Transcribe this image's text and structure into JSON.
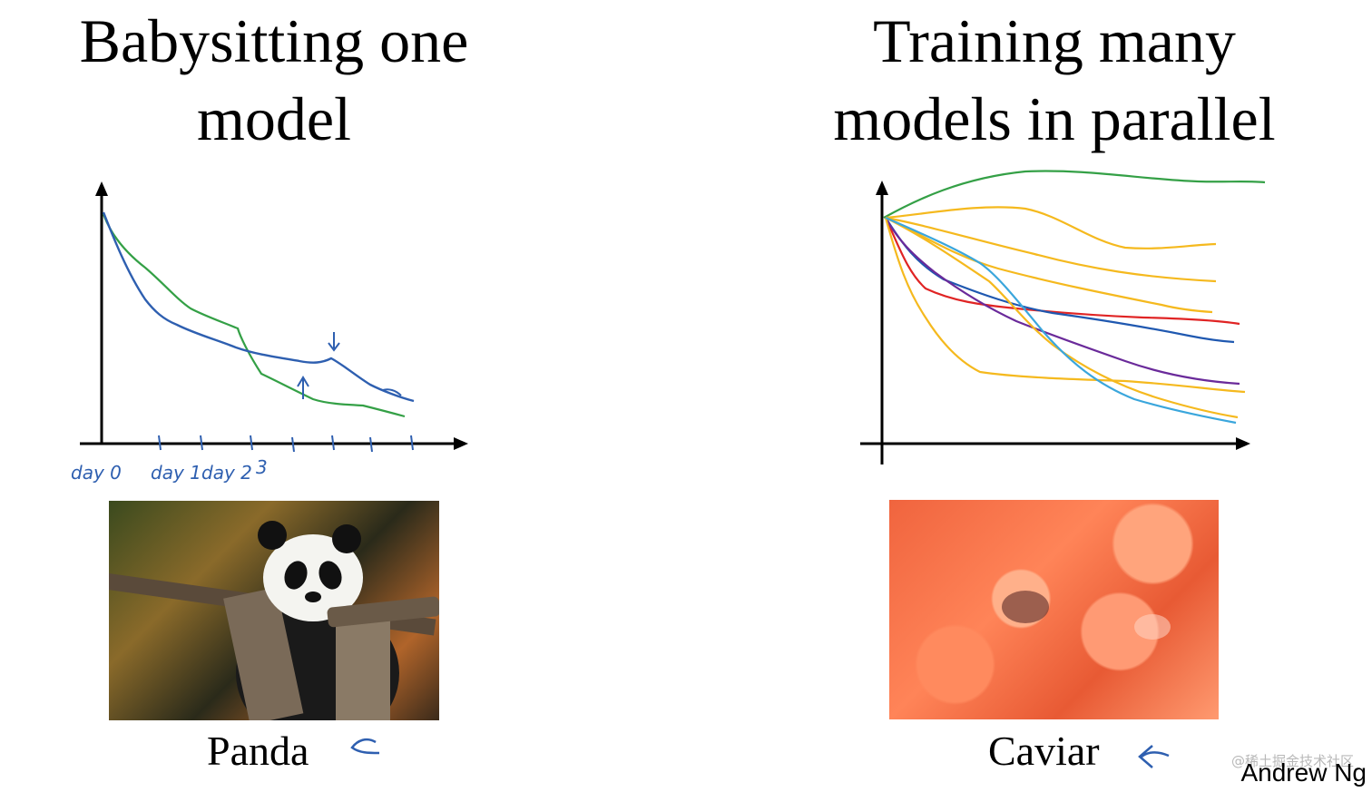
{
  "left": {
    "title_line1": "Babysitting one",
    "title_line2": "model",
    "caption": "Panda",
    "photo_label": "panda-photo"
  },
  "right": {
    "title_line1": "Training many",
    "title_line2": "models in parallel",
    "caption": "Caviar",
    "photo_label": "caviar-photo"
  },
  "footer": {
    "watermark": "@稀土掘金技术社区",
    "author": "Andrew Ng"
  },
  "colors": {
    "blue": "#2e5fb0",
    "green": "#34a046",
    "yellow": "#f5b91e",
    "red": "#e02424",
    "purple": "#6a2a9a",
    "light_blue": "#3aa6dc",
    "dark_blue": "#1f58b0"
  },
  "handwriting": {
    "day_labels": [
      "day 0",
      "day 1",
      "day 2"
    ],
    "extra_label": "3"
  }
}
